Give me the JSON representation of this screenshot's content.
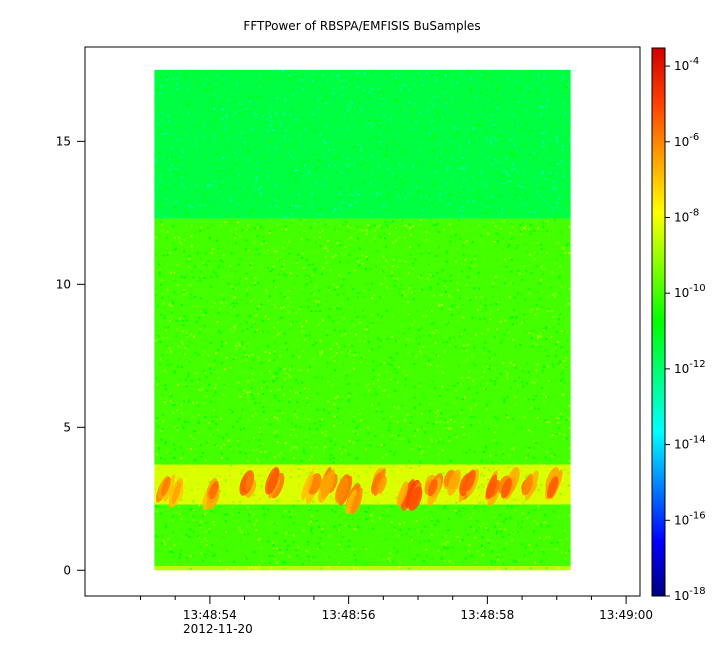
{
  "chart_data": {
    "type": "heatmap",
    "title": "FFTPower of RBSPA/EMFISIS  BuSamples",
    "xlabel": "",
    "ylabel": "",
    "x_ticks": [
      {
        "t": 54,
        "label": "13:48:54",
        "sublabel": "2012-11-20"
      },
      {
        "t": 56,
        "label": "13:48:56",
        "sublabel": ""
      },
      {
        "t": 58,
        "label": "13:48:58",
        "sublabel": ""
      },
      {
        "t": 60,
        "label": "13:49:00",
        "sublabel": ""
      }
    ],
    "x_minor_ticks": [
      53.0,
      53.5,
      54.5,
      55.0,
      55.5,
      56.5,
      57.0,
      57.5,
      58.5,
      59.0,
      59.5
    ],
    "xlim": [
      52.2,
      60.2
    ],
    "data_x_range": [
      53.2,
      59.2
    ],
    "ylim": [
      -0.9,
      18.3
    ],
    "y_ticks": [
      0,
      5,
      10,
      15
    ],
    "y_tick_labels": [
      "0",
      "5",
      "10",
      "15"
    ],
    "data_y_range": [
      0,
      17.5
    ],
    "colorbar": {
      "scale": "log",
      "range": [
        1e-18,
        0.0003
      ],
      "ticks": [
        {
          "value": 0.0001,
          "base": "10",
          "exp": "-4"
        },
        {
          "value": 1e-06,
          "base": "10",
          "exp": "-6"
        },
        {
          "value": 1e-08,
          "base": "10",
          "exp": "-8"
        },
        {
          "value": 1e-10,
          "base": "10",
          "exp": "-10"
        },
        {
          "value": 1e-12,
          "base": "10",
          "exp": "-12"
        },
        {
          "value": 1e-14,
          "base": "10",
          "exp": "-14"
        },
        {
          "value": 1e-16,
          "base": "10",
          "exp": "-16"
        },
        {
          "value": 1e-18,
          "base": "10",
          "exp": "-18"
        }
      ],
      "colormap": [
        "#00007f",
        "#0000ff",
        "#0080ff",
        "#00ffff",
        "#00ff80",
        "#00ff00",
        "#80ff00",
        "#ffff00",
        "#ffa000",
        "#ff4000",
        "#d00000"
      ]
    },
    "bands": [
      {
        "y": [
          0,
          0.15
        ],
        "level": 2e-09
      },
      {
        "y": [
          0.15,
          2.3
        ],
        "level": 1e-10
      },
      {
        "y": [
          2.3,
          3.7
        ],
        "level": 5e-09
      },
      {
        "y": [
          3.7,
          12.3
        ],
        "level": 1e-10
      },
      {
        "y": [
          12.3,
          17.5
        ],
        "level": 3e-12
      }
    ],
    "bursts": [
      {
        "t": 53.35,
        "y": 2.8,
        "level": 3e-07
      },
      {
        "t": 53.55,
        "y": 2.6,
        "level": 3e-07
      },
      {
        "t": 54.05,
        "y": 2.7,
        "level": 6e-07
      },
      {
        "t": 54.55,
        "y": 3.0,
        "level": 1e-06
      },
      {
        "t": 54.95,
        "y": 3.1,
        "level": 1e-06
      },
      {
        "t": 55.45,
        "y": 2.9,
        "level": 3e-07
      },
      {
        "t": 55.7,
        "y": 3.0,
        "level": 1e-06
      },
      {
        "t": 55.95,
        "y": 2.8,
        "level": 1e-06
      },
      {
        "t": 56.1,
        "y": 2.4,
        "level": 6e-07
      },
      {
        "t": 56.45,
        "y": 3.1,
        "level": 1e-06
      },
      {
        "t": 56.8,
        "y": 2.6,
        "level": 1e-06
      },
      {
        "t": 56.95,
        "y": 2.5,
        "level": 3e-06
      },
      {
        "t": 57.2,
        "y": 2.9,
        "level": 1e-06
      },
      {
        "t": 57.5,
        "y": 3.1,
        "level": 1e-06
      },
      {
        "t": 57.75,
        "y": 3.0,
        "level": 1e-06
      },
      {
        "t": 58.05,
        "y": 2.8,
        "level": 1e-06
      },
      {
        "t": 58.3,
        "y": 3.0,
        "level": 1e-06
      },
      {
        "t": 58.6,
        "y": 2.9,
        "level": 1e-06
      },
      {
        "t": 58.95,
        "y": 3.0,
        "level": 1e-06
      }
    ]
  }
}
